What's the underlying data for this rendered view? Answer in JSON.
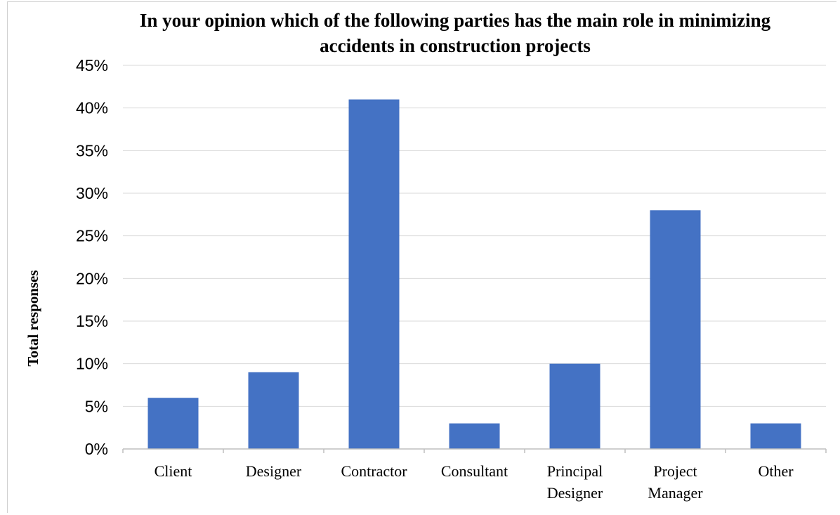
{
  "chart_data": {
    "type": "bar",
    "title": [
      "In your opinion which of the following parties has the main role in minimizing",
      "accidents in construction projects"
    ],
    "xlabel": "",
    "ylabel": "Total responses",
    "categories": [
      [
        "Client"
      ],
      [
        "Designer"
      ],
      [
        "Contractor"
      ],
      [
        "Consultant"
      ],
      [
        "Principal",
        "Designer"
      ],
      [
        "Project",
        "Manager"
      ],
      [
        "Other"
      ]
    ],
    "values": [
      6,
      9,
      41,
      3,
      10,
      28,
      3
    ],
    "ylim": [
      0,
      45
    ],
    "yticks": [
      0,
      5,
      10,
      15,
      20,
      25,
      30,
      35,
      40,
      45
    ],
    "ytick_suffix": "%",
    "grid": true,
    "bar_color": "#4472C4",
    "grid_color": "#D9D9D9",
    "axis_color": "#BFBFBF"
  }
}
